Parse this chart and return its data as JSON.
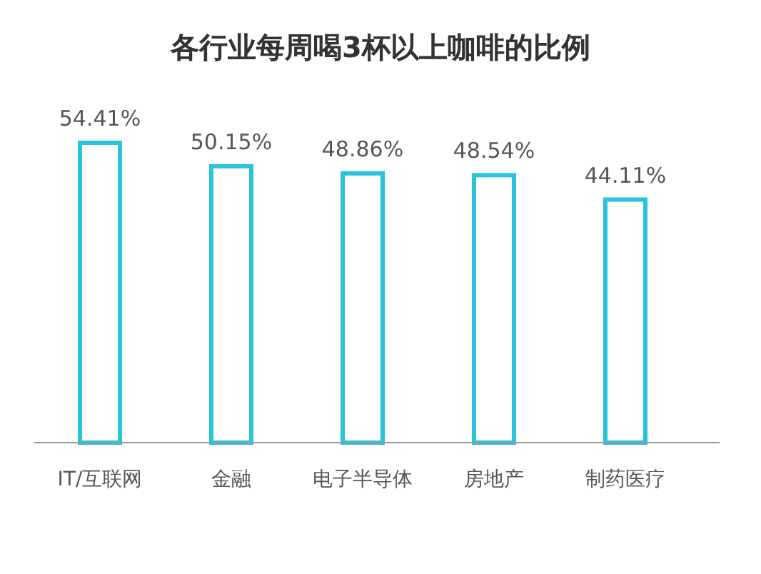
{
  "chart_data": {
    "type": "bar",
    "title": "各行业每周喝3杯以上咖啡的比例",
    "categories": [
      "IT/互联网",
      "金融",
      "电子半导体",
      "房地产",
      "制药医疗"
    ],
    "values": [
      54.41,
      50.15,
      48.86,
      48.54,
      44.11
    ],
    "value_labels": [
      "54.41%",
      "50.15%",
      "48.86%",
      "48.54%",
      "44.11%"
    ],
    "color": "#29c3dc"
  }
}
